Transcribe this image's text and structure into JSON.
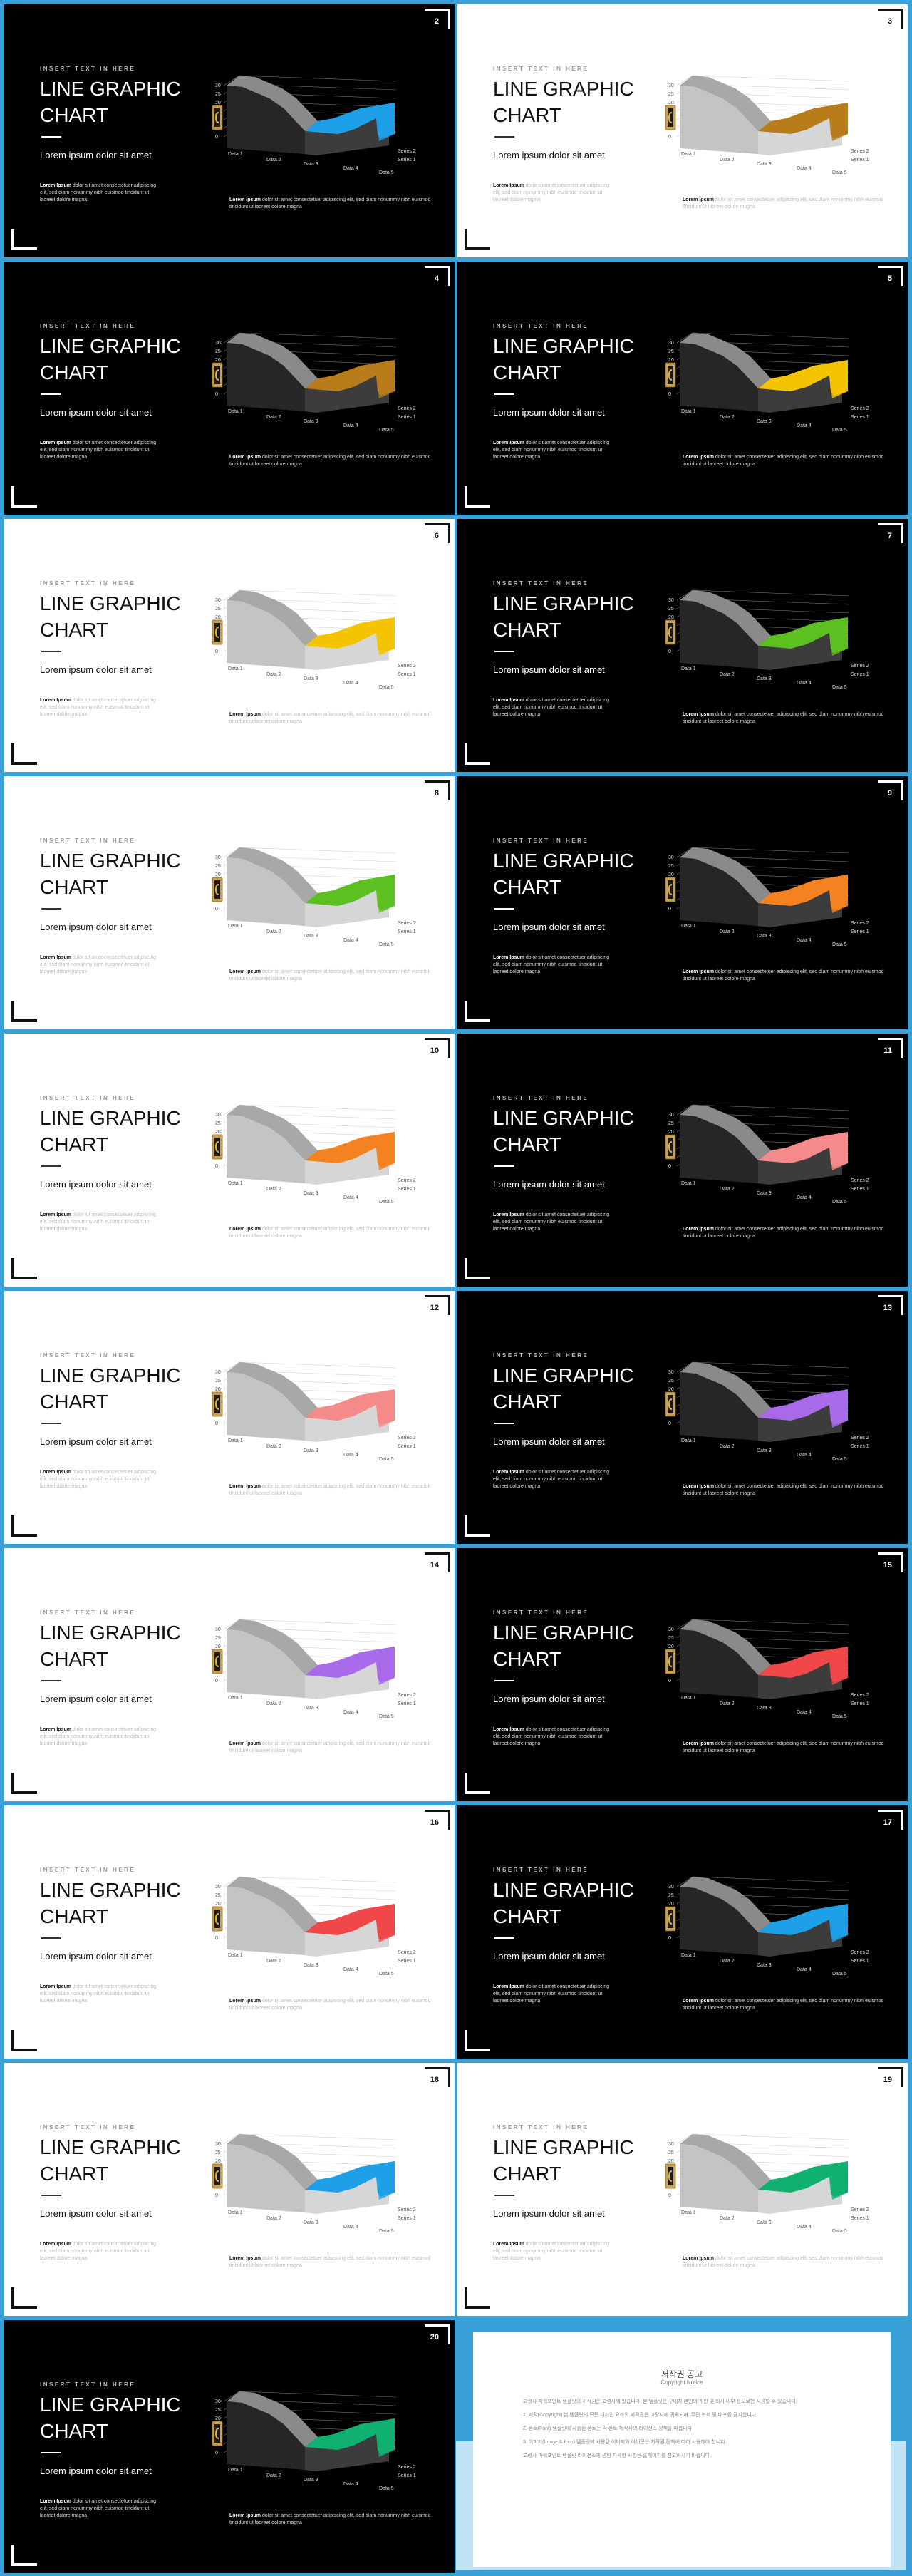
{
  "slide_text": {
    "kicker": "INSERT TEXT IN HERE",
    "title": "LINE GRAPHIC CHART",
    "subtitle": "Lorem ipsum dolor sit amet",
    "body_lead": "Lorem Ipsum",
    "body_left": "dolor sit amet consectetuer adipiscing elit, sed diam nonummy nibh euismod tincidunt ut laoreet dolore magna",
    "body_right": "dolor sit amet consectetuer adipiscing elit, sed diam nonummy nibh euismod tincidunt ut laoreet dolore magna"
  },
  "chart_labels": {
    "categories": [
      "Data 1",
      "Data 2",
      "Data 3",
      "Data 4",
      "Data 5"
    ],
    "series": [
      "Series 2",
      "Series 1"
    ],
    "y_ticks": [
      "30",
      "25",
      "20",
      "15",
      "10",
      "5",
      "0"
    ]
  },
  "slides": [
    {
      "number": "2",
      "theme": "dark",
      "accent": "#1ea0e8"
    },
    {
      "number": "3",
      "theme": "light",
      "accent": "#b87c1a"
    },
    {
      "number": "4",
      "theme": "dark",
      "accent": "#b87c1a"
    },
    {
      "number": "5",
      "theme": "dark",
      "accent": "#f5c400"
    },
    {
      "number": "6",
      "theme": "light",
      "accent": "#f5c400"
    },
    {
      "number": "7",
      "theme": "dark",
      "accent": "#5cc020"
    },
    {
      "number": "8",
      "theme": "light",
      "accent": "#5cc020"
    },
    {
      "number": "9",
      "theme": "dark",
      "accent": "#f58220"
    },
    {
      "number": "10",
      "theme": "light",
      "accent": "#f58220"
    },
    {
      "number": "11",
      "theme": "dark",
      "accent": "#f58a8a"
    },
    {
      "number": "12",
      "theme": "light",
      "accent": "#f58a8a"
    },
    {
      "number": "13",
      "theme": "dark",
      "accent": "#a86ae8"
    },
    {
      "number": "14",
      "theme": "light",
      "accent": "#a86ae8"
    },
    {
      "number": "15",
      "theme": "dark",
      "accent": "#f04848"
    },
    {
      "number": "16",
      "theme": "light",
      "accent": "#f04848"
    },
    {
      "number": "17",
      "theme": "dark",
      "accent": "#1ea0e8"
    },
    {
      "number": "18",
      "theme": "light",
      "accent": "#1ea0e8"
    },
    {
      "number": "19",
      "theme": "light",
      "accent": "#10b070"
    },
    {
      "number": "20",
      "theme": "dark",
      "accent": "#10b070"
    }
  ],
  "notice": {
    "title": "저작권 공고",
    "subtitle": "Copyright Notice",
    "paragraphs": [
      "고령사 파워포인트 템플릿의 저작권은 고령사에 있습니다. 본 템플릿은 구매자 본인의 개인 및 회사 내부 용도로만 사용할 수 있습니다.",
      "1. 저작(Copyright) 본 템플릿의 모든 디자인 요소의 저작권은 고령사에 귀속되며, 무단 복제 및 배포를 금지합니다.",
      "2. 폰트(Font) 템플릿에 사용된 폰트는 각 폰트 제작사의 라이선스 정책을 따릅니다.",
      "3. 이미지(Image & Icon) 템플릿에 사용된 이미지와 아이콘은 저작권 정책에 따라 사용해야 합니다.",
      "고령사 파워포인트 템플릿 라이선스에 관한 자세한 사항은 홈페이지를 참고하시기 바랍니다."
    ]
  }
}
